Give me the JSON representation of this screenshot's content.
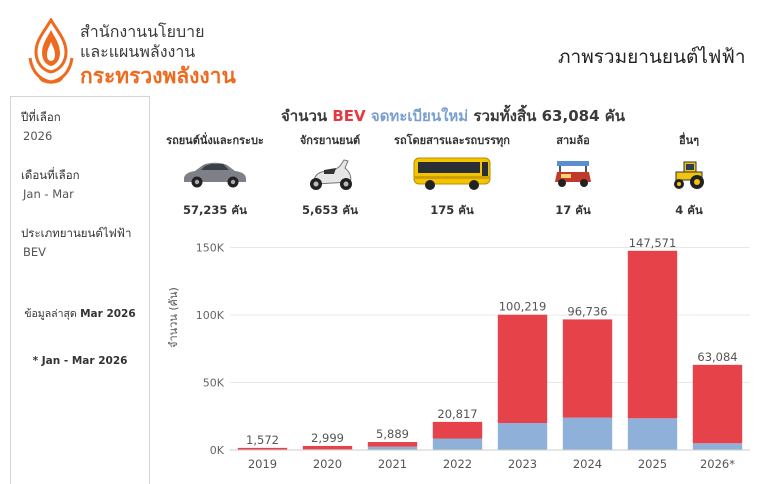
{
  "header": {
    "org_line1": "สำนักงานนโยบาย",
    "org_line2": "และแผนพลังงาน",
    "ministry": "กระทรวงพลังงาน",
    "page_title": "ภาพรวมยานยนต์ไฟฟ้า",
    "logo_icon": "flame-logo-icon",
    "brand_color": "#ee6a1f"
  },
  "filters": {
    "year_label": "ปีที่เลือก",
    "year_value": "2026",
    "month_label": "เดือนที่เลือก",
    "month_value": "Jan - Mar",
    "type_label": "ประเภทยานยนต์ไฟฟ้า",
    "type_value": "BEV",
    "latest_prefix": "ข้อมูลล่าสุด",
    "latest_value": "Mar 2026",
    "footnote": "* Jan - Mar 2026"
  },
  "summary": {
    "prefix": "จำนวน",
    "bev": "BEV",
    "new_reg": "จดทะเบียนใหม่",
    "total_text": "รวมทั้งสิ้น 63,084 คัน",
    "categories": [
      {
        "label": "รถยนต์นั่งและกระบะ",
        "count": "57,235 คัน",
        "icon": "car-icon"
      },
      {
        "label": "จักรยานยนต์",
        "count": "5,653 คัน",
        "icon": "scooter-icon"
      },
      {
        "label": "รถโดยสารและรถบรรทุก",
        "count": "175 คัน",
        "icon": "bus-icon"
      },
      {
        "label": "สามล้อ",
        "count": "17 คัน",
        "icon": "tuk-tuk-icon"
      },
      {
        "label": "อื่นๆ",
        "count": "4 คัน",
        "icon": "tractor-icon"
      }
    ]
  },
  "chart_data": {
    "type": "bar",
    "stacked": true,
    "categories": [
      "2019",
      "2020",
      "2021",
      "2022",
      "2023",
      "2024",
      "2025",
      "2026*"
    ],
    "totals_labels": [
      "1,572",
      "2,999",
      "5,889",
      "20,817",
      "100,219",
      "96,736",
      "147,571",
      "63,084"
    ],
    "series": [
      {
        "color": "#8fb1d9",
        "values": [
          300,
          500,
          2500,
          8500,
          20000,
          24000,
          23500,
          5000
        ]
      },
      {
        "color": "#e5424a",
        "values": [
          1272,
          2499,
          3389,
          12317,
          80219,
          72736,
          124071,
          58084
        ]
      }
    ],
    "ylabel": "จำนวน (คัน)",
    "yticks": [
      "0K",
      "50K",
      "100K",
      "150K"
    ],
    "ylim": [
      0,
      160000
    ],
    "grid": true
  }
}
